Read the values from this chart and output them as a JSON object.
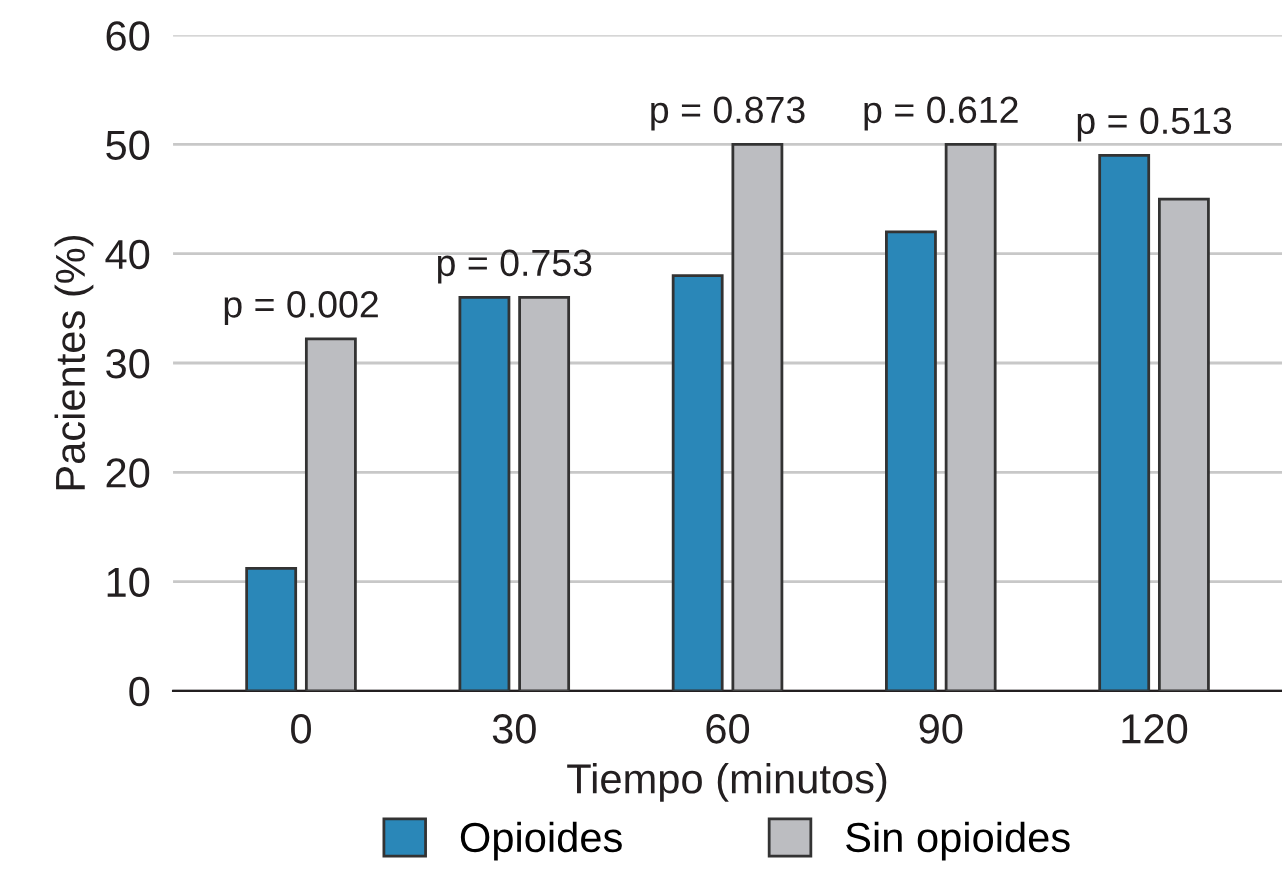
{
  "chart_data": {
    "type": "bar",
    "xlabel": "Tiempo (minutos)",
    "ylabel": "Pacientes (%)",
    "categories": [
      "0",
      "30",
      "60",
      "90",
      "120"
    ],
    "series": [
      {
        "name": "Opioides",
        "color": "#2a87b8",
        "values": [
          11.2,
          36,
          38,
          42,
          49
        ]
      },
      {
        "name": "Sin opioides",
        "color": "#bcbdc1",
        "values": [
          32.2,
          36,
          50,
          50,
          45
        ]
      }
    ],
    "ylim": [
      0,
      60
    ],
    "yticks": [
      0,
      10,
      20,
      30,
      40,
      50,
      60
    ],
    "grid": "y",
    "legend": "bottom",
    "annotations": [
      {
        "text": "p = 0.002",
        "x": "0",
        "y": 32.2
      },
      {
        "text": "p = 0.753",
        "x": "30",
        "y": 36
      },
      {
        "text": "p = 0.873",
        "x": "60",
        "y": 50
      },
      {
        "text": "p = 0.612",
        "x": "90",
        "y": 50
      },
      {
        "text": "p = 0.513",
        "x": "120",
        "y": 49
      }
    ]
  }
}
